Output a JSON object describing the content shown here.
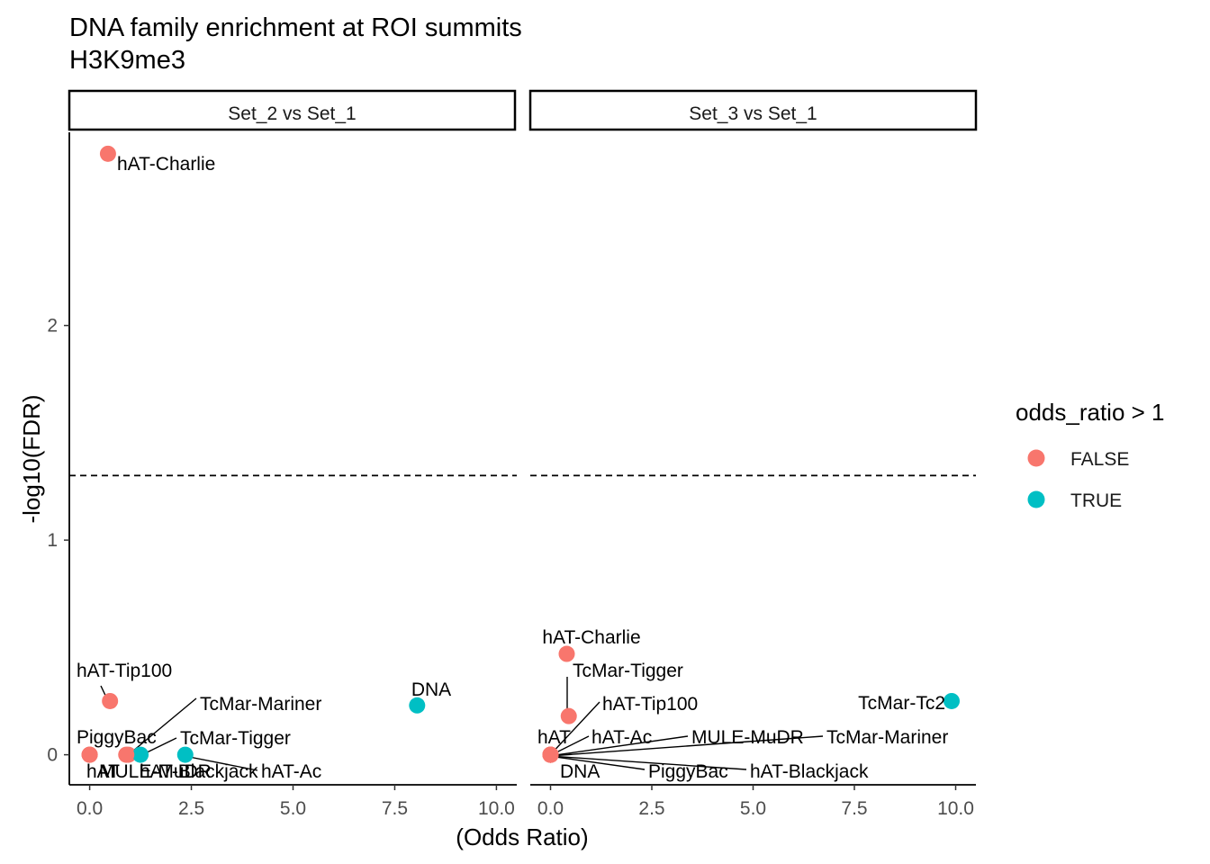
{
  "chart_data": {
    "type": "scatter",
    "title": "DNA family enrichment at ROI summits",
    "subtitle": "H3K9me3",
    "xlabel": "(Odds Ratio)",
    "ylabel": "-log10(FDR)",
    "xlim": [
      -0.5,
      10.5
    ],
    "ylim": [
      -0.14,
      2.9
    ],
    "xticks": [
      "0.0",
      "2.5",
      "5.0",
      "7.5",
      "10.0"
    ],
    "xtick_values": [
      0,
      2.5,
      5,
      7.5,
      10
    ],
    "yticks": [
      "0",
      "1",
      "2"
    ],
    "ytick_values": [
      0,
      1,
      2
    ],
    "threshold_line": 1.301,
    "grid": false,
    "legend": {
      "title": "odds_ratio > 1",
      "placement": "right",
      "entries": [
        {
          "label": "FALSE",
          "color": "#F8766D"
        },
        {
          "label": "TRUE",
          "color": "#00BFC4"
        }
      ]
    },
    "panels": [
      {
        "name": "Set_2 vs Set_1",
        "points": [
          {
            "label": "hAT-Charlie",
            "x": 0.45,
            "y": 2.8,
            "group": "FALSE"
          },
          {
            "label": "hAT-Tip100",
            "x": 0.5,
            "y": 0.25,
            "group": "FALSE"
          },
          {
            "label": "PiggyBac",
            "x": 0.0,
            "y": 0.0,
            "group": "FALSE"
          },
          {
            "label": "TcMar-Mariner",
            "x": 0.95,
            "y": 0.0,
            "group": "FALSE"
          },
          {
            "label": "hAT",
            "x": 0.0,
            "y": 0.0,
            "group": "FALSE"
          },
          {
            "label": "TcMar-Tigger",
            "x": 1.25,
            "y": 0.0,
            "group": "TRUE"
          },
          {
            "label": "MULE-MuDR",
            "x": 0.0,
            "y": 0.0,
            "group": "FALSE"
          },
          {
            "label": "hAT-Blackjack",
            "x": 0.9,
            "y": 0.0,
            "group": "FALSE"
          },
          {
            "label": "hAT-Ac",
            "x": 2.35,
            "y": 0.0,
            "group": "TRUE"
          },
          {
            "label": "DNA",
            "x": 8.05,
            "y": 0.23,
            "group": "TRUE"
          }
        ]
      },
      {
        "name": "Set_3 vs Set_1",
        "points": [
          {
            "label": "hAT-Charlie",
            "x": 0.4,
            "y": 0.47,
            "group": "FALSE"
          },
          {
            "label": "TcMar-Tigger",
            "x": 0.45,
            "y": 0.18,
            "group": "FALSE"
          },
          {
            "label": "hAT-Tip100",
            "x": 0.0,
            "y": 0.0,
            "group": "FALSE"
          },
          {
            "label": "hAT",
            "x": 0.0,
            "y": 0.0,
            "group": "FALSE"
          },
          {
            "label": "hAT-Ac",
            "x": 0.0,
            "y": 0.0,
            "group": "FALSE"
          },
          {
            "label": "MULE-MuDR",
            "x": 0.0,
            "y": 0.0,
            "group": "FALSE"
          },
          {
            "label": "TcMar-Mariner",
            "x": 0.0,
            "y": 0.0,
            "group": "FALSE"
          },
          {
            "label": "DNA",
            "x": 0.0,
            "y": 0.0,
            "group": "FALSE"
          },
          {
            "label": "PiggyBac",
            "x": 0.0,
            "y": 0.0,
            "group": "FALSE"
          },
          {
            "label": "hAT-Blackjack",
            "x": 0.0,
            "y": 0.0,
            "group": "FALSE"
          },
          {
            "label": "TcMar-Tc2",
            "x": 9.9,
            "y": 0.25,
            "group": "TRUE"
          }
        ]
      }
    ]
  }
}
